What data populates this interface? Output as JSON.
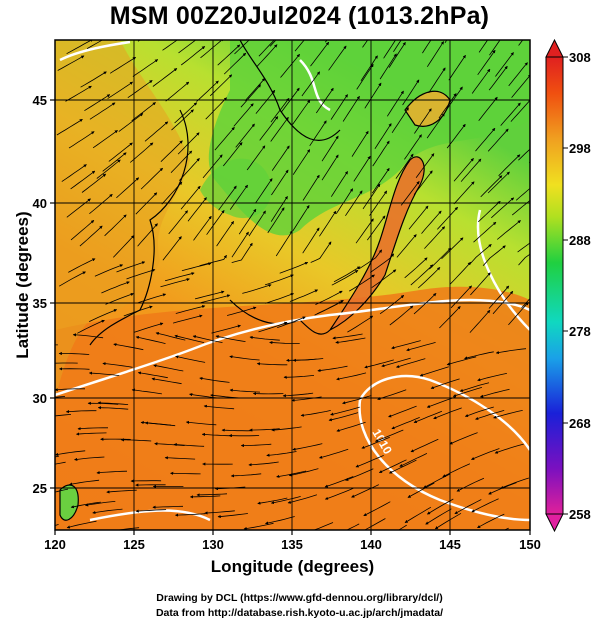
{
  "title": "MSM 00Z20Jul2024 (1013.2hPa)",
  "map": {
    "xlabel": "Longitude (degrees)",
    "ylabel": "Latitude  (degrees)",
    "x_ticks": [
      "120",
      "125",
      "130",
      "135",
      "140",
      "145",
      "150"
    ],
    "y_ticks": [
      "25",
      "30",
      "35",
      "40",
      "45"
    ],
    "lon_range": [
      120,
      150
    ],
    "lat_range": [
      22.4,
      47.6
    ],
    "contour_labels": [
      "1010"
    ],
    "colors": {
      "warm": "#f07a18",
      "mid": "#f2b51c",
      "yellow": "#d8e030",
      "green": "#5ed23a",
      "land": "#e8a020"
    }
  },
  "colorbar": {
    "ticks": [
      "308",
      "298",
      "288",
      "278",
      "268",
      "258"
    ],
    "range": [
      258,
      308
    ],
    "gradient": [
      "#e0209a",
      "#7a10c0",
      "#1a20d8",
      "#1aa0e8",
      "#10d8c0",
      "#20d040",
      "#b0e020",
      "#f0e020",
      "#f0a020",
      "#f05010",
      "#e02020"
    ]
  },
  "credits": {
    "line1": "Drawing by DCL (https://www.gfd-dennou.org/library/dcl/)",
    "line2": "Data from http://database.rish.kyoto-u.ac.jp/arch/jmadata/"
  }
}
